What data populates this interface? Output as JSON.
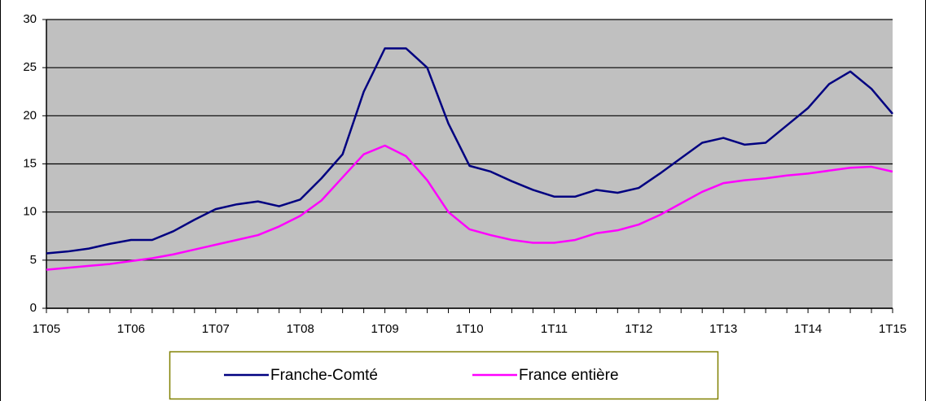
{
  "chart_data": {
    "type": "line",
    "categories": [
      "1T05",
      null,
      null,
      null,
      "1T06",
      null,
      null,
      null,
      "1T07",
      null,
      null,
      null,
      "1T08",
      null,
      null,
      null,
      "1T09",
      null,
      null,
      null,
      "1T10",
      null,
      null,
      null,
      "1T11",
      null,
      null,
      null,
      "1T12",
      null,
      null,
      null,
      "1T13",
      null,
      null,
      null,
      "1T14",
      null,
      null,
      null,
      "1T15"
    ],
    "series": [
      {
        "name": "Franche-Comté",
        "color": "#000080",
        "values": [
          5.7,
          5.9,
          6.2,
          6.7,
          7.1,
          7.1,
          8.0,
          9.2,
          10.3,
          10.8,
          11.1,
          10.6,
          11.3,
          13.5,
          16.0,
          22.5,
          27.0,
          27.0,
          25.0,
          19.2,
          14.8,
          14.2,
          13.2,
          12.3,
          11.6,
          11.6,
          12.3,
          12.0,
          12.5,
          14.0,
          15.6,
          17.2,
          17.7,
          17.0,
          17.2,
          19.0,
          20.8,
          23.3,
          24.6,
          22.8,
          20.2
        ]
      },
      {
        "name": "France entière",
        "color": "#ff00ff",
        "values": [
          4.0,
          4.2,
          4.4,
          4.6,
          4.9,
          5.2,
          5.6,
          6.1,
          6.6,
          7.1,
          7.6,
          8.5,
          9.6,
          11.2,
          13.6,
          16.0,
          16.9,
          15.8,
          13.3,
          10.0,
          8.2,
          7.6,
          7.1,
          6.8,
          6.8,
          7.1,
          7.8,
          8.1,
          8.7,
          9.7,
          10.9,
          12.1,
          13.0,
          13.3,
          13.5,
          13.8,
          14.0,
          14.3,
          14.6,
          14.7,
          14.2
        ]
      }
    ],
    "ylim": [
      0,
      30
    ],
    "yticks": [
      0,
      5,
      10,
      15,
      20,
      25,
      30
    ],
    "grid": true,
    "plot_background": "#c0c0c0",
    "legend": "bottom"
  }
}
